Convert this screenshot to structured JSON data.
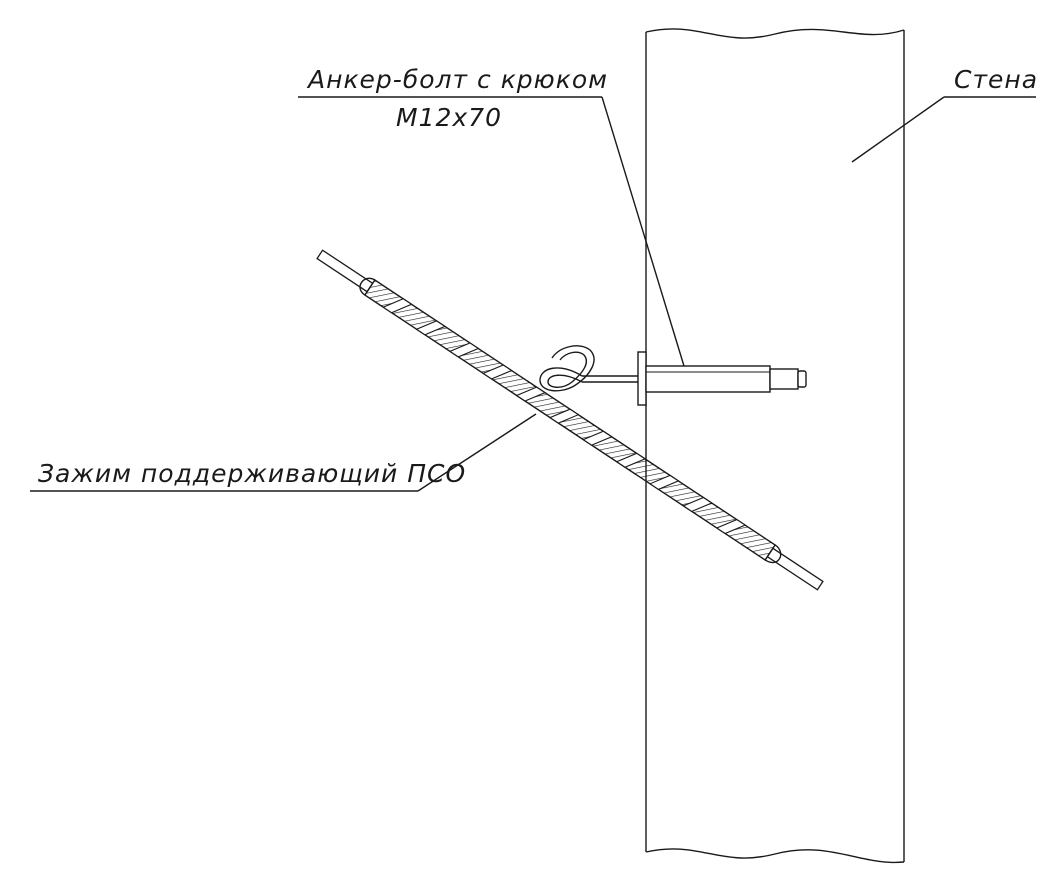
{
  "labels": {
    "anchor_bolt": "Анкер-болт с крюком",
    "anchor_size": "M12x70",
    "wall": "Стена",
    "clamp": "Зажим поддерживающий ПСО"
  },
  "colors": {
    "line": "#1a1a1a",
    "background": "#ffffff"
  }
}
